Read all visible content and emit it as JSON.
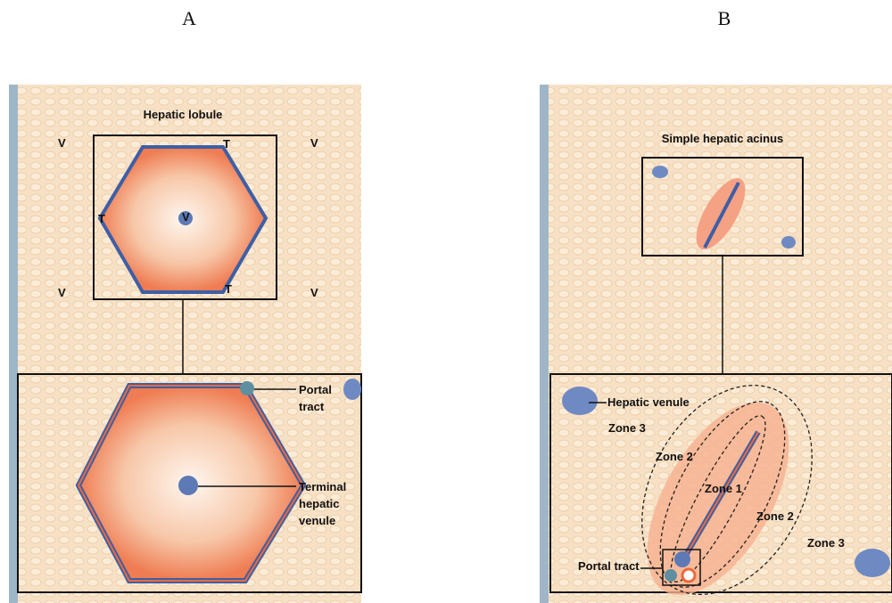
{
  "panels": [
    {
      "label": "A",
      "title": "Hepatic lobule",
      "markers": [
        "V",
        "V",
        "V",
        "V",
        "V",
        "T",
        "T",
        "T"
      ],
      "callouts": [
        {
          "lines": [
            "Portal",
            "tract"
          ]
        },
        {
          "lines": [
            "Terminal",
            "hepatic",
            "venule"
          ]
        }
      ]
    },
    {
      "label": "B",
      "title": "Simple hepatic acinus",
      "callouts": [
        {
          "lines": [
            "Hepatic venule"
          ]
        },
        {
          "lines": [
            "Portal tract"
          ]
        }
      ],
      "zones": [
        "Zone 3",
        "Zone 2",
        "Zone 1",
        "Zone 2",
        "Zone 3"
      ]
    }
  ]
}
